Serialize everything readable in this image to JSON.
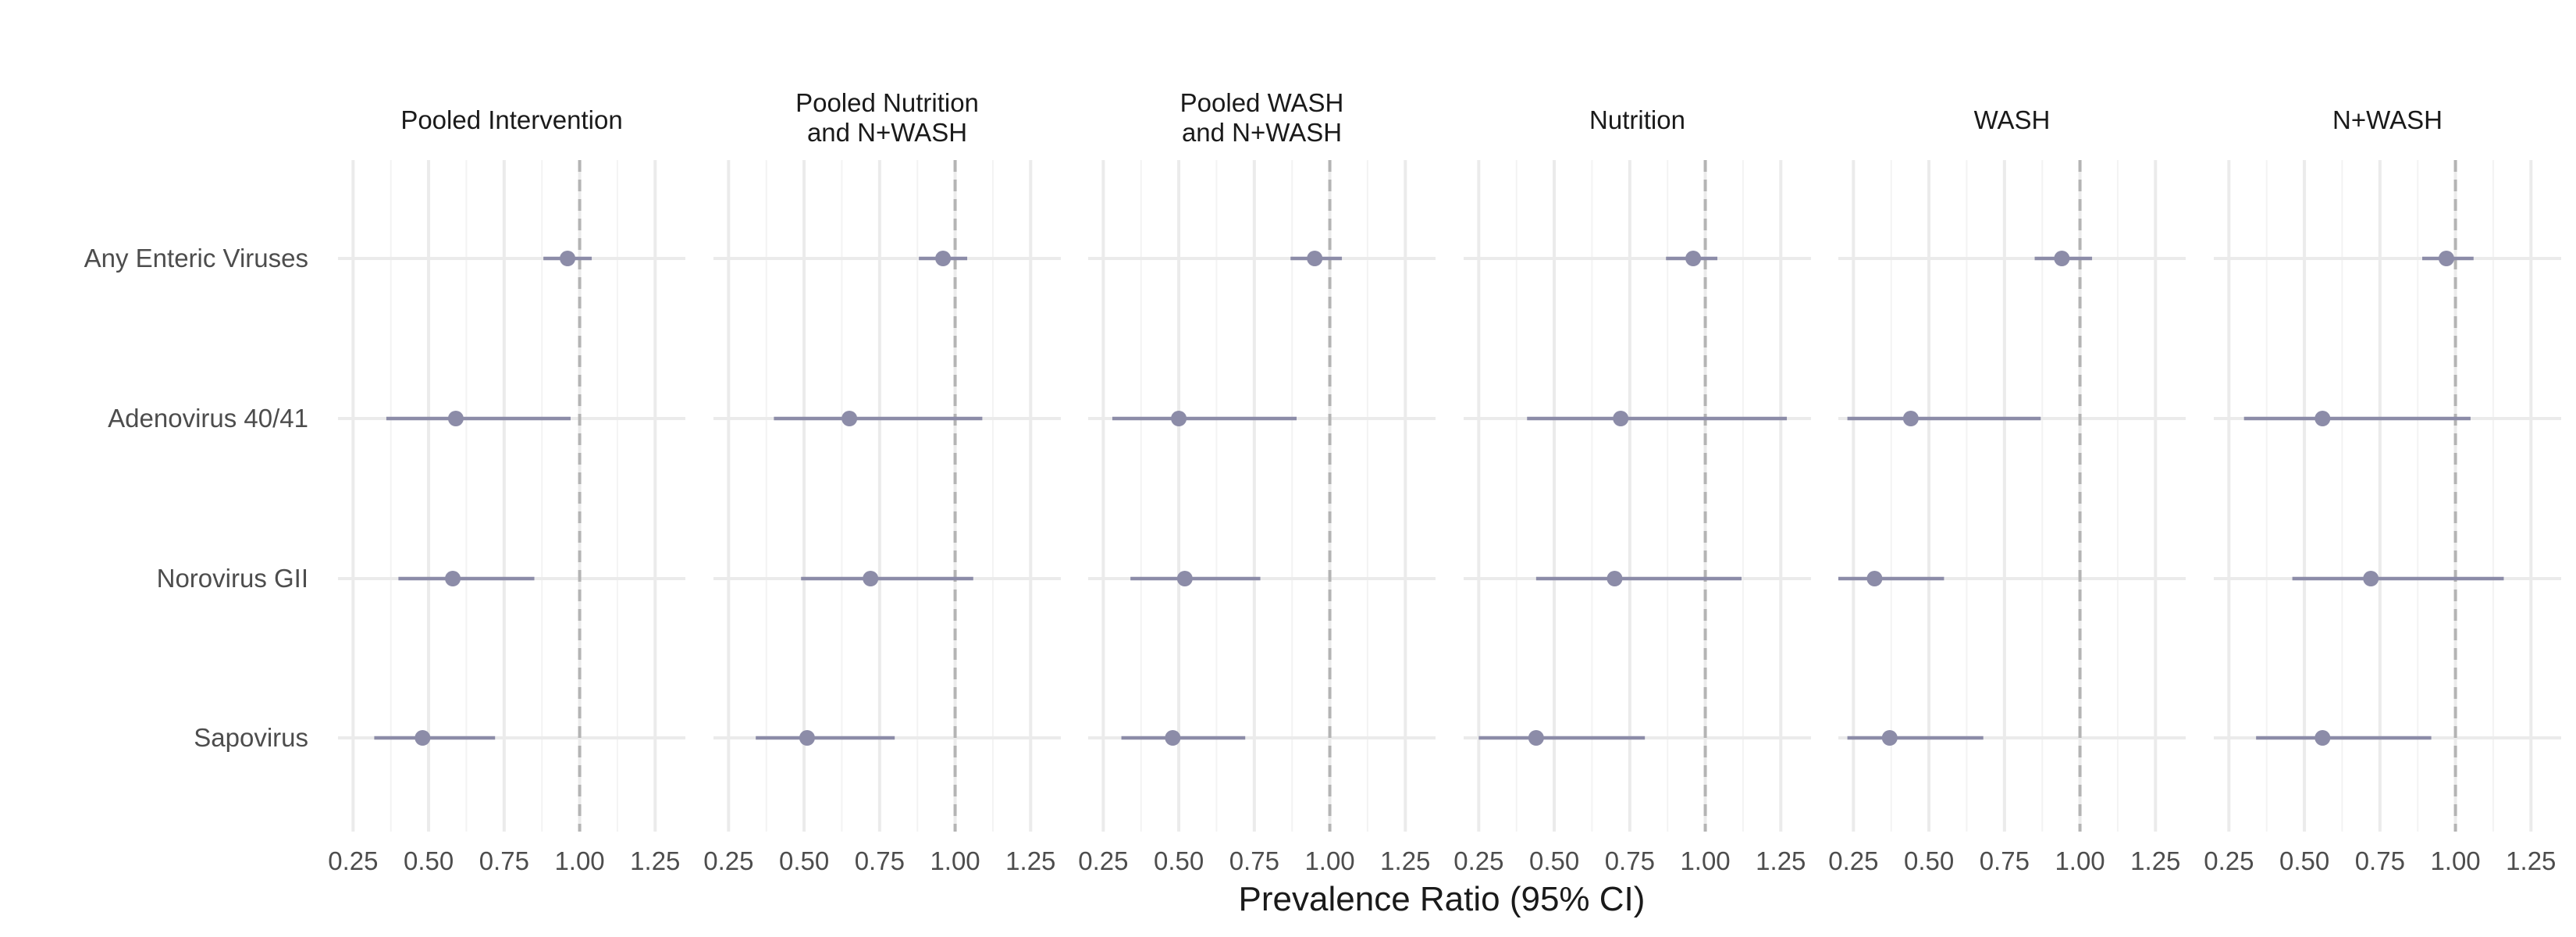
{
  "chart_data": {
    "type": "forest",
    "xlabel": "Prevalence Ratio (95% CI)",
    "ylabel": "",
    "xlim": [
      0.2,
      1.35
    ],
    "x_ticks": [
      0.25,
      0.5,
      0.75,
      1.0,
      1.25
    ],
    "x_tick_labels": [
      "0.25",
      "0.50",
      "0.75",
      "1.00",
      "1.25"
    ],
    "reference_line": 1.0,
    "grid": true,
    "colors": {
      "point": "#8c8ca8",
      "reference": "#b4b4b4",
      "grid": "#ebebeb"
    },
    "categories": [
      "Any Enteric Viruses",
      "Adenovirus 40/41",
      "Norovirus GII",
      "Sapovirus"
    ],
    "panels": [
      {
        "title_lines": [
          "Pooled Intervention"
        ],
        "estimates": [
          {
            "pr": 0.96,
            "lo": 0.88,
            "hi": 1.04
          },
          {
            "pr": 0.59,
            "lo": 0.36,
            "hi": 0.97
          },
          {
            "pr": 0.58,
            "lo": 0.4,
            "hi": 0.85
          },
          {
            "pr": 0.48,
            "lo": 0.32,
            "hi": 0.72
          }
        ]
      },
      {
        "title_lines": [
          "Pooled Nutrition",
          "and N+WASH"
        ],
        "estimates": [
          {
            "pr": 0.96,
            "lo": 0.88,
            "hi": 1.04
          },
          {
            "pr": 0.65,
            "lo": 0.4,
            "hi": 1.09
          },
          {
            "pr": 0.72,
            "lo": 0.49,
            "hi": 1.06
          },
          {
            "pr": 0.51,
            "lo": 0.34,
            "hi": 0.8
          }
        ]
      },
      {
        "title_lines": [
          "Pooled WASH",
          "and N+WASH"
        ],
        "estimates": [
          {
            "pr": 0.95,
            "lo": 0.87,
            "hi": 1.04
          },
          {
            "pr": 0.5,
            "lo": 0.28,
            "hi": 0.89
          },
          {
            "pr": 0.52,
            "lo": 0.34,
            "hi": 0.77
          },
          {
            "pr": 0.48,
            "lo": 0.31,
            "hi": 0.72
          }
        ]
      },
      {
        "title_lines": [
          "Nutrition"
        ],
        "estimates": [
          {
            "pr": 0.96,
            "lo": 0.87,
            "hi": 1.04
          },
          {
            "pr": 0.72,
            "lo": 0.41,
            "hi": 1.27
          },
          {
            "pr": 0.7,
            "lo": 0.44,
            "hi": 1.12
          },
          {
            "pr": 0.44,
            "lo": 0.25,
            "hi": 0.8
          }
        ]
      },
      {
        "title_lines": [
          "WASH"
        ],
        "estimates": [
          {
            "pr": 0.94,
            "lo": 0.85,
            "hi": 1.04
          },
          {
            "pr": 0.44,
            "lo": 0.23,
            "hi": 0.87
          },
          {
            "pr": 0.32,
            "lo": 0.2,
            "hi": 0.55
          },
          {
            "pr": 0.37,
            "lo": 0.23,
            "hi": 0.68
          }
        ]
      },
      {
        "title_lines": [
          "N+WASH"
        ],
        "estimates": [
          {
            "pr": 0.97,
            "lo": 0.89,
            "hi": 1.06
          },
          {
            "pr": 0.56,
            "lo": 0.3,
            "hi": 1.05
          },
          {
            "pr": 0.72,
            "lo": 0.46,
            "hi": 1.16
          },
          {
            "pr": 0.56,
            "lo": 0.34,
            "hi": 0.92
          }
        ]
      }
    ]
  }
}
